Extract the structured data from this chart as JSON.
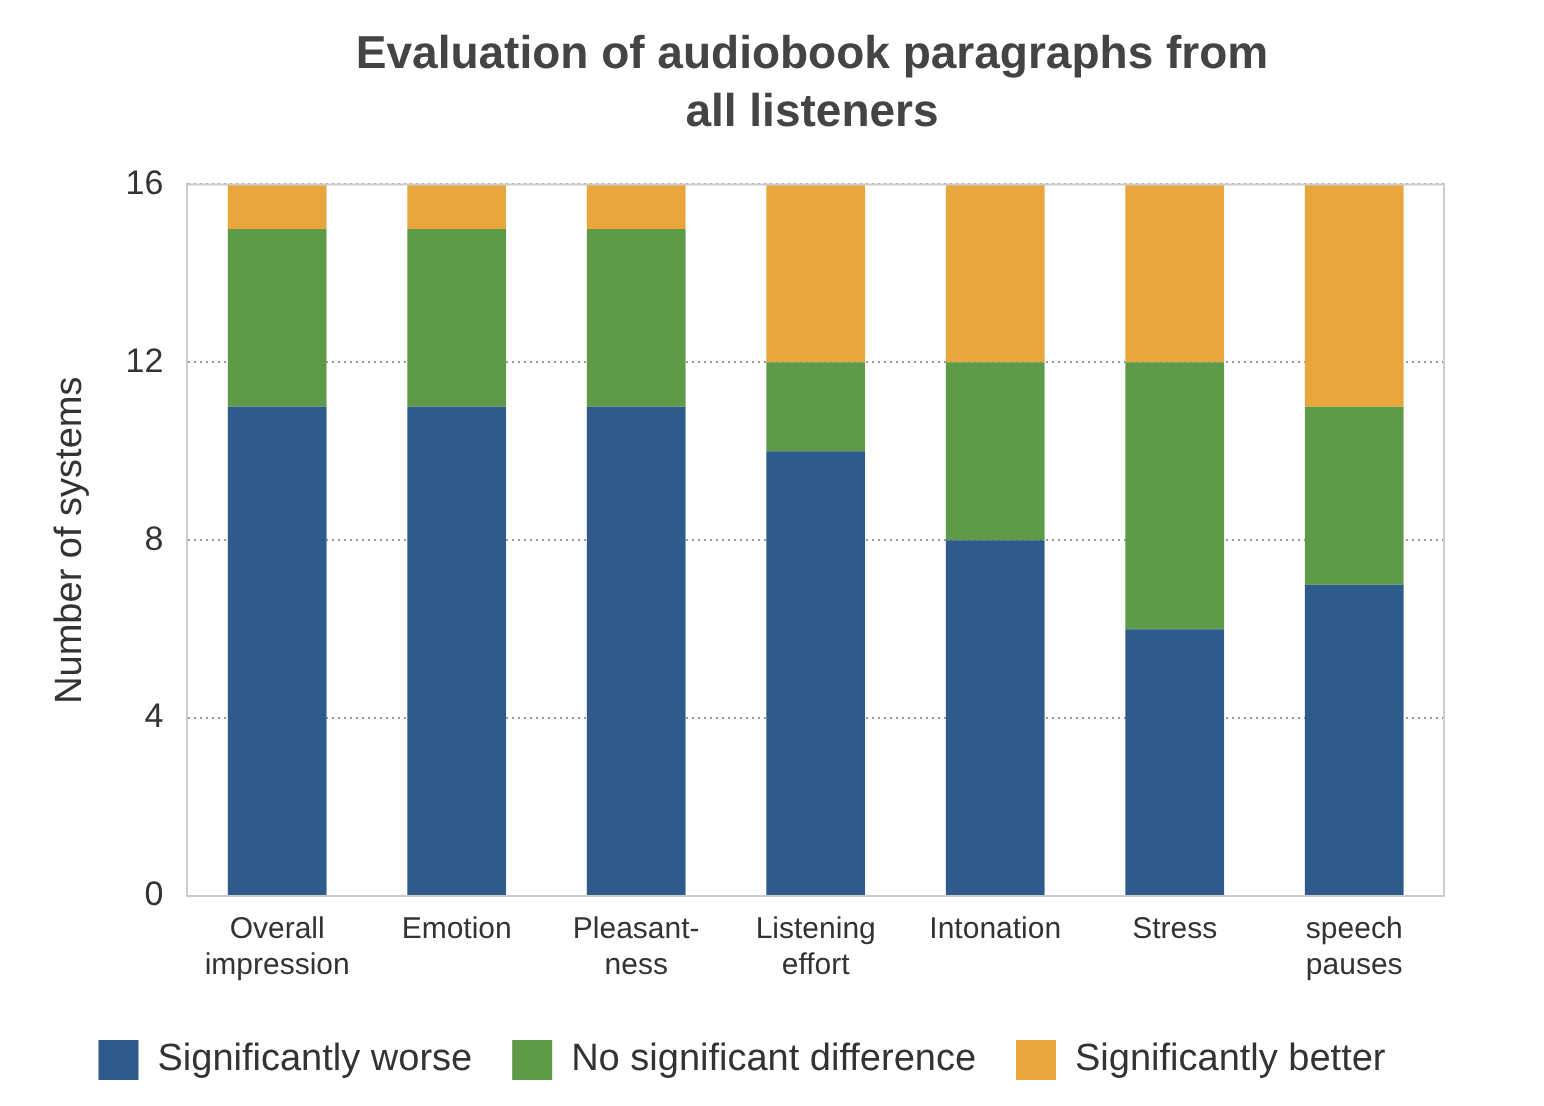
{
  "chart_data": {
    "type": "bar",
    "title": "Evaluation of audiobook paragraphs from all listeners",
    "ylabel": "Number of systems",
    "categories": [
      "Overall impression",
      "Emotion",
      "Pleasant-ness",
      "Listening effort",
      "Intonation",
      "Stress",
      "speech pauses"
    ],
    "series": [
      {
        "name": "Significantly worse",
        "color": "#2e5a8c",
        "values": [
          11,
          11,
          11,
          10,
          8,
          6,
          7
        ]
      },
      {
        "name": "No significant difference",
        "color": "#5f9a48",
        "values": [
          4,
          4,
          4,
          2,
          4,
          6,
          4
        ]
      },
      {
        "name": "Significantly better",
        "color": "#e8a63d",
        "values": [
          1,
          1,
          1,
          4,
          4,
          4,
          5
        ]
      }
    ],
    "stacked": true,
    "ylim": [
      0,
      16
    ],
    "yticks": [
      0,
      4,
      8,
      12,
      16
    ],
    "grid": "y",
    "legend": "bottom"
  }
}
